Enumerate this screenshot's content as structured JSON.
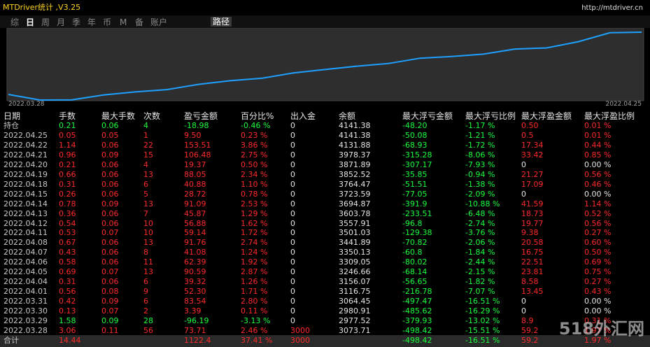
{
  "header": {
    "title": "MTDriver统计 ,V3.25",
    "url": "http://mtdriver.cn"
  },
  "tabs": [
    "综",
    "日",
    "周",
    "月",
    "季",
    "年",
    "币",
    "M",
    "备",
    "账户"
  ],
  "path_button": "路径",
  "chart": {
    "start_date": "2022.03.28",
    "end_date": "2022.04.25"
  },
  "table": {
    "columns": [
      "日期",
      "手数",
      "最大手数",
      "次数",
      "盈亏金额",
      "百分比%",
      "出入金",
      "余额",
      "最大浮亏金额",
      "最大浮亏比例",
      "最大浮盈金额",
      "最大浮盈比例"
    ],
    "rows": [
      [
        "持仓",
        "0.21",
        "0.06",
        "4",
        "-18.98",
        "-0.46 %",
        "0",
        "4141.38",
        "-48.20",
        "-1.17 %",
        "0.50",
        "0.01 %"
      ],
      [
        "2022.04.25",
        "0.05",
        "0.05",
        "1",
        "9.50",
        "0.23 %",
        "0",
        "4141.38",
        "-50.08",
        "-1.21 %",
        "0.5",
        "0.01 %"
      ],
      [
        "2022.04.22",
        "1.14",
        "0.06",
        "22",
        "153.51",
        "3.86 %",
        "0",
        "4131.88",
        "-68.93",
        "-1.72 %",
        "17.34",
        "0.44 %"
      ],
      [
        "2022.04.21",
        "0.96",
        "0.09",
        "15",
        "106.48",
        "2.75 %",
        "0",
        "3978.37",
        "-315.28",
        "-8.06 %",
        "33.42",
        "0.85 %"
      ],
      [
        "2022.04.20",
        "0.21",
        "0.06",
        "4",
        "19.37",
        "0.50 %",
        "0",
        "3871.89",
        "-307.17",
        "-7.93 %",
        "0",
        "0.00 %"
      ],
      [
        "2022.04.19",
        "0.66",
        "0.06",
        "13",
        "88.05",
        "2.34 %",
        "0",
        "3852.52",
        "-35.85",
        "-0.94 %",
        "21.27",
        "0.56 %"
      ],
      [
        "2022.04.18",
        "0.31",
        "0.06",
        "6",
        "40.88",
        "1.10 %",
        "0",
        "3764.47",
        "-51.51",
        "-1.38 %",
        "17.09",
        "0.46 %"
      ],
      [
        "2022.04.15",
        "0.26",
        "0.06",
        "5",
        "28.72",
        "0.78 %",
        "0",
        "3723.59",
        "-77.05",
        "-2.09 %",
        "0",
        "0.00 %"
      ],
      [
        "2022.04.14",
        "0.78",
        "0.09",
        "13",
        "91.09",
        "2.53 %",
        "0",
        "3694.87",
        "-391.9",
        "-10.88 %",
        "41.59",
        "1.14 %"
      ],
      [
        "2022.04.13",
        "0.36",
        "0.06",
        "7",
        "45.87",
        "1.29 %",
        "0",
        "3603.78",
        "-233.51",
        "-6.48 %",
        "18.73",
        "0.52 %"
      ],
      [
        "2022.04.12",
        "0.54",
        "0.06",
        "10",
        "56.88",
        "1.62 %",
        "0",
        "3557.91",
        "-96.8",
        "-2.74 %",
        "19.77",
        "0.56 %"
      ],
      [
        "2022.04.11",
        "0.53",
        "0.07",
        "10",
        "59.14",
        "1.72 %",
        "0",
        "3501.03",
        "-129.38",
        "-3.76 %",
        "9.38",
        "0.27 %"
      ],
      [
        "2022.04.08",
        "0.67",
        "0.06",
        "13",
        "91.76",
        "2.74 %",
        "0",
        "3441.89",
        "-70.82",
        "-2.06 %",
        "20.58",
        "0.60 %"
      ],
      [
        "2022.04.07",
        "0.43",
        "0.06",
        "8",
        "41.08",
        "1.24 %",
        "0",
        "3350.13",
        "-60.8",
        "-1.84 %",
        "16.75",
        "0.50 %"
      ],
      [
        "2022.04.06",
        "0.58",
        "0.06",
        "11",
        "62.39",
        "1.92 %",
        "0",
        "3309.05",
        "-80.02",
        "-2.44 %",
        "22.51",
        "0.69 %"
      ],
      [
        "2022.04.05",
        "0.69",
        "0.07",
        "13",
        "90.59",
        "2.87 %",
        "0",
        "3246.66",
        "-68.14",
        "-2.15 %",
        "23.81",
        "0.75 %"
      ],
      [
        "2022.04.04",
        "0.31",
        "0.06",
        "6",
        "39.32",
        "1.26 %",
        "0",
        "3156.07",
        "-56.65",
        "-1.82 %",
        "8.58",
        "0.27 %"
      ],
      [
        "2022.04.01",
        "0.56",
        "0.08",
        "9",
        "52.30",
        "1.71 %",
        "0",
        "3116.75",
        "-216.78",
        "-7.07 %",
        "13.45",
        "0.43 %"
      ],
      [
        "2022.03.31",
        "0.42",
        "0.09",
        "6",
        "83.54",
        "2.80 %",
        "0",
        "3064.45",
        "-497.47",
        "-16.51 %",
        "0",
        "0.00 %"
      ],
      [
        "2022.03.30",
        "0.13",
        "0.07",
        "2",
        "3.39",
        "0.11 %",
        "0",
        "2980.91",
        "-485.62",
        "-16.29 %",
        "0",
        "0.00 %"
      ],
      [
        "2022.03.29",
        "1.58",
        "0.09",
        "28",
        "-96.19",
        "-3.13 %",
        "0",
        "2977.52",
        "-379.93",
        "-13.02 %",
        "8.9",
        "0.31 %"
      ],
      [
        "2022.03.28",
        "3.06",
        "0.11",
        "56",
        "73.71",
        "2.46 %",
        "3000",
        "3073.71",
        "-498.42",
        "-15.51 %",
        "59.2",
        "1.97 %"
      ]
    ],
    "total": [
      "合计",
      "14.44",
      null,
      null,
      "1122.4",
      "37.41 %",
      "3000",
      null,
      "-498.42",
      "-16.51 %",
      "59.2",
      "1.97 %"
    ]
  },
  "watermark": "518外汇网"
}
